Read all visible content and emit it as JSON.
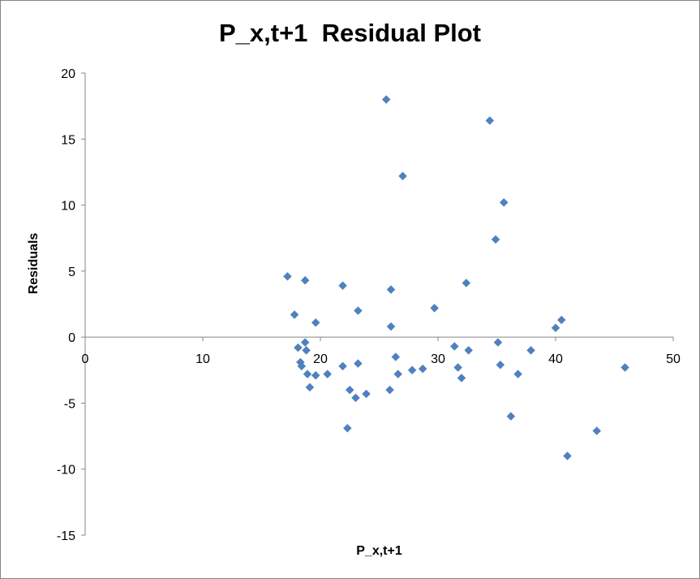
{
  "chart_data": {
    "type": "scatter",
    "title": "P_x,t+1  Residual Plot",
    "xlabel": "P_x,t+1",
    "ylabel": "Residuals",
    "xlim": [
      0,
      50
    ],
    "ylim": [
      -15,
      20
    ],
    "x_ticks": [
      "0",
      "10",
      "20",
      "30",
      "40",
      "50"
    ],
    "y_ticks": [
      "20",
      "15",
      "10",
      "5",
      "0",
      "-5",
      "-10",
      "-15"
    ],
    "grid": false,
    "legend": "none",
    "marker_color": "#4f81bd",
    "points": [
      {
        "x": 17.2,
        "y": 4.6
      },
      {
        "x": 17.8,
        "y": 1.7
      },
      {
        "x": 18.1,
        "y": -0.8
      },
      {
        "x": 18.3,
        "y": -1.9
      },
      {
        "x": 18.4,
        "y": -2.2
      },
      {
        "x": 18.7,
        "y": 4.3
      },
      {
        "x": 18.7,
        "y": -0.4
      },
      {
        "x": 18.8,
        "y": -1.0
      },
      {
        "x": 18.9,
        "y": -2.8
      },
      {
        "x": 19.1,
        "y": -3.8
      },
      {
        "x": 19.6,
        "y": 1.1
      },
      {
        "x": 19.6,
        "y": -2.9
      },
      {
        "x": 20.6,
        "y": -2.8
      },
      {
        "x": 21.9,
        "y": 3.9
      },
      {
        "x": 21.9,
        "y": -2.2
      },
      {
        "x": 22.3,
        "y": -6.9
      },
      {
        "x": 22.5,
        "y": -4.0
      },
      {
        "x": 23.0,
        "y": -4.6
      },
      {
        "x": 23.2,
        "y": 2.0
      },
      {
        "x": 23.2,
        "y": -2.0
      },
      {
        "x": 23.9,
        "y": -4.3
      },
      {
        "x": 25.6,
        "y": 18.0
      },
      {
        "x": 25.9,
        "y": -4.0
      },
      {
        "x": 26.0,
        "y": 0.8
      },
      {
        "x": 26.0,
        "y": 3.6
      },
      {
        "x": 26.4,
        "y": -1.5
      },
      {
        "x": 26.6,
        "y": -2.8
      },
      {
        "x": 27.0,
        "y": 12.2
      },
      {
        "x": 27.8,
        "y": -2.5
      },
      {
        "x": 28.7,
        "y": -2.4
      },
      {
        "x": 29.7,
        "y": 2.2
      },
      {
        "x": 31.4,
        "y": -0.7
      },
      {
        "x": 31.7,
        "y": -2.3
      },
      {
        "x": 32.0,
        "y": -3.1
      },
      {
        "x": 32.4,
        "y": 4.1
      },
      {
        "x": 32.6,
        "y": -1.0
      },
      {
        "x": 34.4,
        "y": 16.4
      },
      {
        "x": 34.9,
        "y": 7.4
      },
      {
        "x": 35.1,
        "y": -0.4
      },
      {
        "x": 35.3,
        "y": -2.1
      },
      {
        "x": 35.6,
        "y": 10.2
      },
      {
        "x": 36.2,
        "y": -6.0
      },
      {
        "x": 36.8,
        "y": -2.8
      },
      {
        "x": 37.9,
        "y": -1.0
      },
      {
        "x": 40.0,
        "y": 0.7
      },
      {
        "x": 40.5,
        "y": 1.3
      },
      {
        "x": 41.0,
        "y": -9.0
      },
      {
        "x": 43.5,
        "y": -7.1
      },
      {
        "x": 45.9,
        "y": -2.3
      }
    ]
  }
}
